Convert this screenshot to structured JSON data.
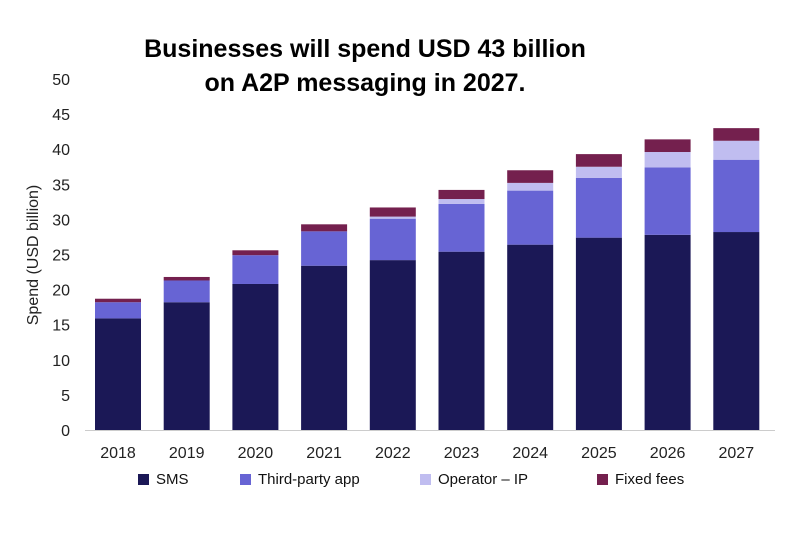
{
  "chart_data": {
    "type": "bar",
    "stacked": true,
    "title": [
      "Businesses will spend USD 43 billion",
      "on A2P messaging in 2027."
    ],
    "xlabel": "",
    "ylabel": "Spend (USD billion)",
    "ylim": [
      0,
      50
    ],
    "yticks": [
      0,
      5,
      10,
      15,
      20,
      25,
      30,
      35,
      40,
      45,
      50
    ],
    "grid": false,
    "legend_position": "bottom",
    "categories": [
      "2018",
      "2019",
      "2020",
      "2021",
      "2022",
      "2023",
      "2024",
      "2025",
      "2026",
      "2027"
    ],
    "series": [
      {
        "name": "SMS",
        "color": "#1b1856",
        "values": [
          15.9,
          18.2,
          20.8,
          23.4,
          24.2,
          25.4,
          26.4,
          27.4,
          27.8,
          28.2
        ]
      },
      {
        "name": "Third-party app",
        "color": "#6764d4",
        "values": [
          2.3,
          3.1,
          4.1,
          4.9,
          5.9,
          6.8,
          7.7,
          8.5,
          9.6,
          10.3
        ]
      },
      {
        "name": "Operator – IP",
        "color": "#c0bdf0",
        "values": [
          0,
          0,
          0,
          0,
          0.3,
          0.7,
          1.1,
          1.6,
          2.2,
          2.7
        ]
      },
      {
        "name": "Fixed fees",
        "color": "#74204e",
        "values": [
          0.5,
          0.5,
          0.7,
          1.0,
          1.3,
          1.3,
          1.8,
          1.8,
          1.8,
          1.8
        ]
      }
    ]
  }
}
